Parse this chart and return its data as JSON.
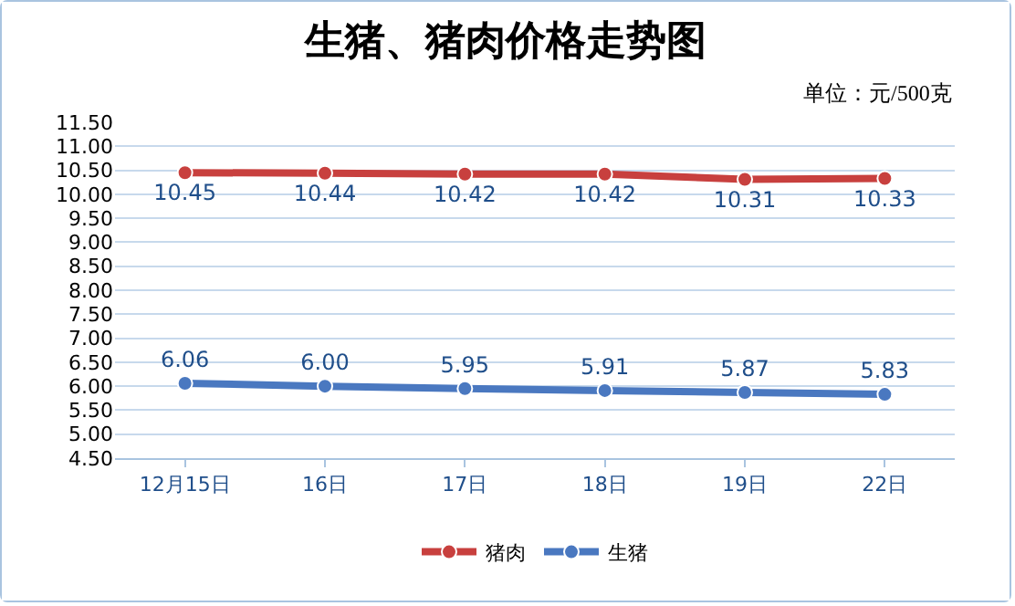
{
  "chart_data": {
    "type": "line",
    "title": "生猪、猪肉价格走势图",
    "annotations": [
      "单位：元/500克"
    ],
    "categories": [
      "12月15日",
      "16日",
      "17日",
      "18日",
      "19日",
      "22日"
    ],
    "series": [
      {
        "name": "猪肉",
        "color": "#c8403e",
        "values": [
          10.45,
          10.44,
          10.42,
          10.42,
          10.31,
          10.33
        ],
        "value_labels": [
          "10.45",
          "10.44",
          "10.42",
          "10.42",
          "10.31",
          "10.33"
        ]
      },
      {
        "name": "生猪",
        "color": "#4a78c0",
        "values": [
          6.06,
          6.0,
          5.95,
          5.91,
          5.87,
          5.83
        ],
        "value_labels": [
          "6.06",
          "6.00",
          "5.95",
          "5.91",
          "5.87",
          "5.83"
        ]
      }
    ],
    "ylim": [
      4.5,
      11.5
    ],
    "yticks": [
      {
        "value": 4.5,
        "label": "4.50"
      },
      {
        "value": 5,
        "label": "5.00"
      },
      {
        "value": 5.5,
        "label": "5.50"
      },
      {
        "value": 6,
        "label": "6.00"
      },
      {
        "value": 6.5,
        "label": "6.50"
      },
      {
        "value": 7,
        "label": "7.00"
      },
      {
        "value": 7.5,
        "label": "7.50"
      },
      {
        "value": 8,
        "label": "8.00"
      },
      {
        "value": 8.5,
        "label": "8.50"
      },
      {
        "value": 9,
        "label": "9.00"
      },
      {
        "value": 9.5,
        "label": "9.50"
      },
      {
        "value": 10,
        "label": "10.00"
      },
      {
        "value": 10.5,
        "label": "10.50"
      },
      {
        "value": 11,
        "label": "11.00"
      },
      {
        "value": 11.5,
        "label": "11.50"
      }
    ],
    "grid": "y",
    "legend": "bottom",
    "marker": "circle",
    "line_style": "solid"
  }
}
